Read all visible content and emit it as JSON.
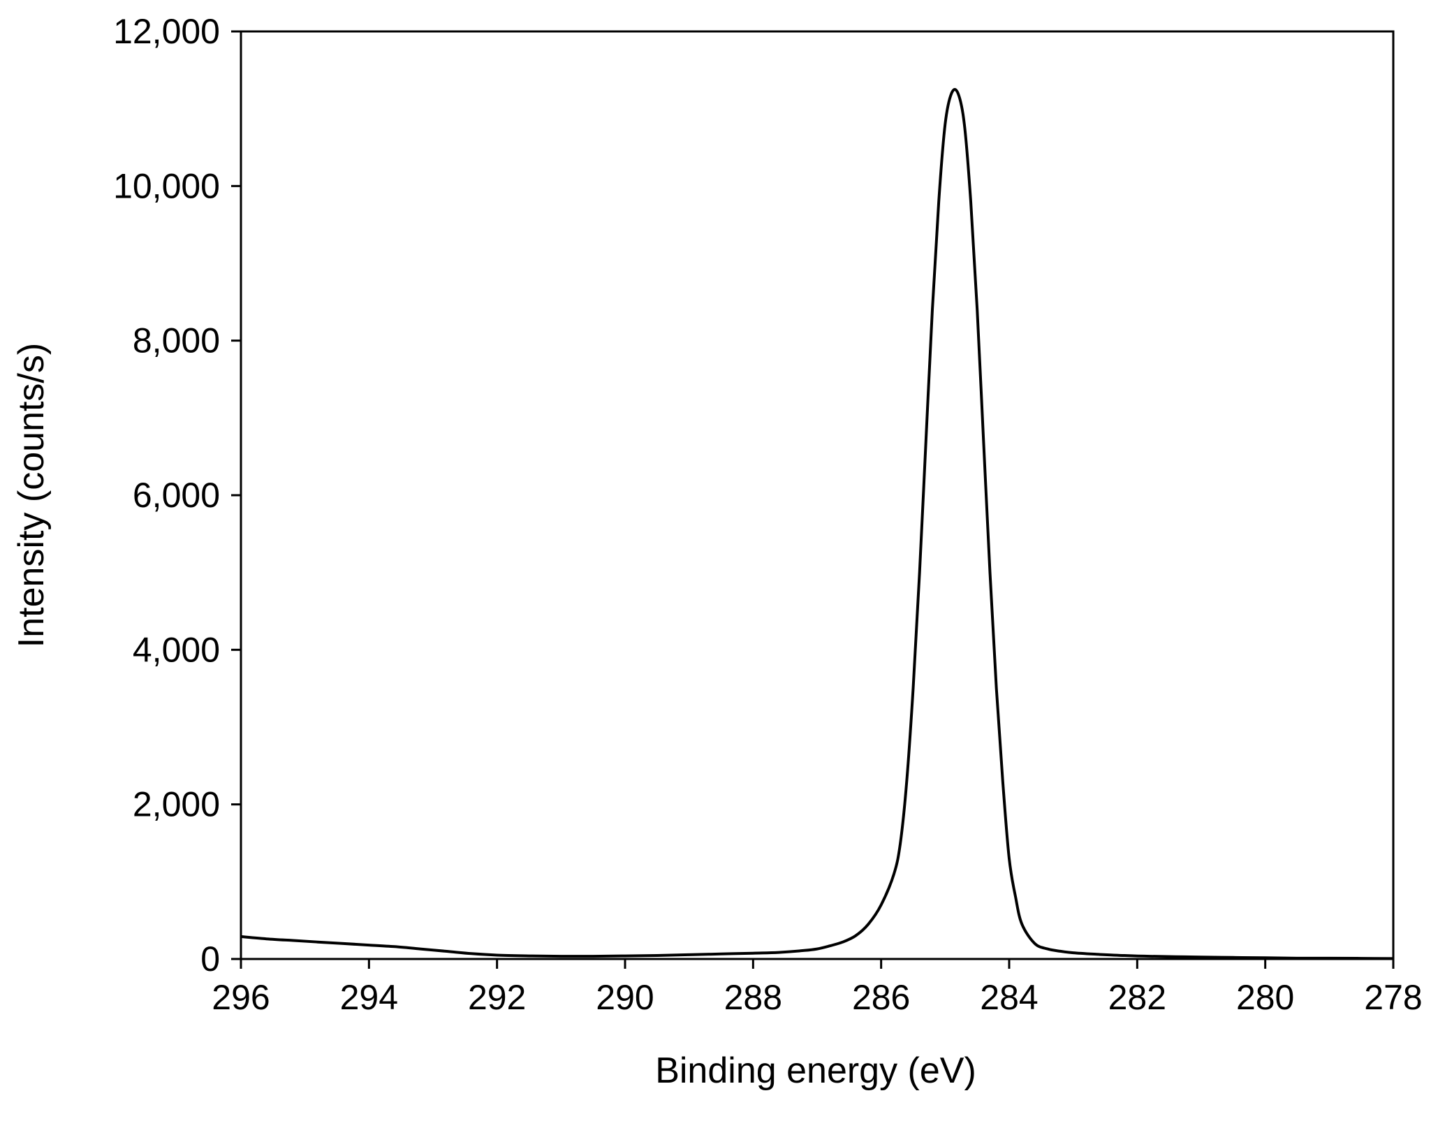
{
  "chart_data": {
    "type": "line",
    "title": "",
    "xlabel": "Binding energy (eV)",
    "ylabel": "Intensity (counts/s)",
    "x_reversed": true,
    "xlim": [
      296,
      278
    ],
    "ylim": [
      0,
      12000
    ],
    "grid": false,
    "legend": "none",
    "x_ticks": [
      296,
      294,
      292,
      290,
      288,
      286,
      284,
      282,
      280,
      278
    ],
    "x_tick_labels": [
      "296",
      "294",
      "292",
      "290",
      "288",
      "286",
      "284",
      "282",
      "280",
      "278"
    ],
    "y_ticks": [
      0,
      2000,
      4000,
      6000,
      8000,
      10000,
      12000
    ],
    "y_tick_labels": [
      "0",
      "2,000",
      "4,000",
      "6,000",
      "8,000",
      "10,000",
      "12,000"
    ],
    "line_color": "#000000",
    "series": [
      {
        "x": [
          296.0,
          295.6,
          295.2,
          294.8,
          294.4,
          294.0,
          293.6,
          293.2,
          292.8,
          292.4,
          292.0,
          291.5,
          291.0,
          290.5,
          290.0,
          289.5,
          289.0,
          288.5,
          288.0,
          287.6,
          287.2,
          287.0,
          286.8,
          286.6,
          286.4,
          286.2,
          286.0,
          285.8,
          285.7,
          285.6,
          285.5,
          285.4,
          285.3,
          285.2,
          285.1,
          285.0,
          284.9,
          284.8,
          284.7,
          284.6,
          284.5,
          284.4,
          284.3,
          284.2,
          284.1,
          284.0,
          283.9,
          283.8,
          283.6,
          283.4,
          283.2,
          283.0,
          282.6,
          282.2,
          281.8,
          281.4,
          281.0,
          280.5,
          280.0,
          279.5,
          279.0,
          278.5,
          278.0
        ],
        "y": [
          290,
          260,
          240,
          220,
          200,
          180,
          160,
          130,
          100,
          70,
          50,
          40,
          35,
          35,
          40,
          45,
          55,
          65,
          75,
          85,
          110,
          130,
          170,
          220,
          300,
          450,
          700,
          1100,
          1500,
          2300,
          3500,
          5000,
          6700,
          8400,
          9800,
          10800,
          11200,
          11200,
          10800,
          9800,
          8400,
          6700,
          5000,
          3500,
          2300,
          1300,
          800,
          450,
          200,
          130,
          100,
          80,
          60,
          45,
          35,
          30,
          25,
          20,
          15,
          10,
          10,
          8,
          5
        ]
      }
    ]
  }
}
